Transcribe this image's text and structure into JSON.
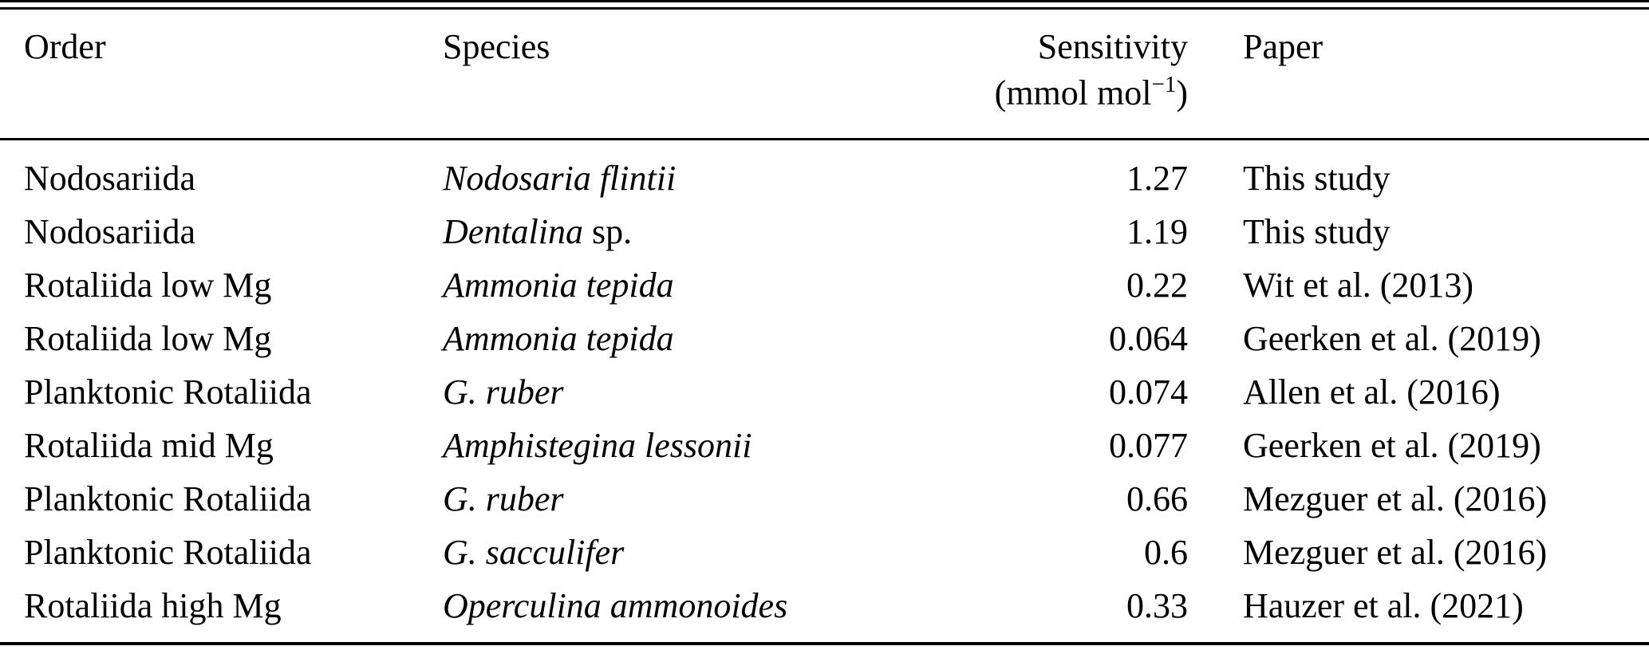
{
  "page": {
    "background_color": "#ffffff",
    "text_color": "#000000",
    "rule_color": "#000000"
  },
  "table": {
    "header": {
      "order": "Order",
      "species": "Species",
      "sensitivity": "Sensitivity",
      "sensitivity_unit_open": "(mmol mol",
      "sensitivity_unit_exponent": "−1",
      "sensitivity_unit_close": ")",
      "paper": "Paper"
    },
    "rows": [
      {
        "order": "Nodosariida",
        "species_italic": "Nodosaria flintii",
        "species_roman": "",
        "sensitivity": "1.27",
        "paper": "This study"
      },
      {
        "order": "Nodosariida",
        "species_italic": "Dentalina",
        "species_roman": " sp.",
        "sensitivity": "1.19",
        "paper": "This study"
      },
      {
        "order": "Rotaliida low Mg",
        "species_italic": "Ammonia tepida",
        "species_roman": "",
        "sensitivity": "0.22",
        "paper": "Wit et al. (2013)"
      },
      {
        "order": "Rotaliida low Mg",
        "species_italic": "Ammonia tepida",
        "species_roman": "",
        "sensitivity": "0.064",
        "paper": "Geerken et al. (2019)"
      },
      {
        "order": "Planktonic Rotaliida",
        "species_italic": "G. ruber",
        "species_roman": "",
        "sensitivity": "0.074",
        "paper": "Allen et al. (2016)"
      },
      {
        "order": "Rotaliida mid Mg",
        "species_italic": "Amphistegina lessonii",
        "species_roman": "",
        "sensitivity": "0.077",
        "paper": "Geerken et al. (2019)"
      },
      {
        "order": "Planktonic Rotaliida",
        "species_italic": "G. ruber",
        "species_roman": "",
        "sensitivity": "0.66",
        "paper": "Mezguer et al. (2016)"
      },
      {
        "order": "Planktonic Rotaliida",
        "species_italic": "G. sacculifer",
        "species_roman": "",
        "sensitivity": "0.6",
        "paper": "Mezguer et al. (2016)"
      },
      {
        "order": "Rotaliida high Mg",
        "species_italic": "Operculina ammonoides",
        "species_roman": "",
        "sensitivity": "0.33",
        "paper": "Hauzer et al. (2021)"
      }
    ]
  }
}
